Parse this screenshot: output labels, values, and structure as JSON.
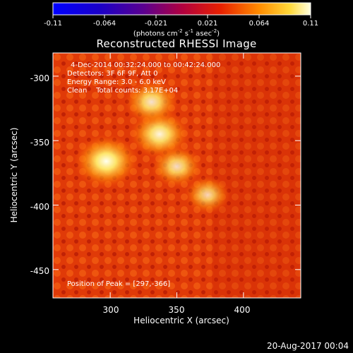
{
  "colorbar": {
    "tick_labels": [
      "-0.11",
      "-0.064",
      "-0.021",
      "0.021",
      "0.064",
      "0.11"
    ],
    "units": "(photons cm^-2 s^-1 asec^-2)",
    "units_parts": {
      "pre": "(photons cm",
      "e1": "-2",
      "mid1": " s",
      "e2": "-1",
      "mid2": " asec",
      "e3": "-2",
      "post": ")"
    },
    "range": [
      -0.11,
      0.11
    ]
  },
  "chart_data": {
    "type": "heatmap",
    "title": "Reconstructed RHESSI Image",
    "xlabel": "Heliocentric X (arcsec)",
    "ylabel": "Heliocentric Y (arcsec)",
    "xlim": [
      257,
      443
    ],
    "ylim": [
      -472,
      -282
    ],
    "x_ticks": [
      "300",
      "350",
      "400"
    ],
    "y_ticks": [
      "-300",
      "-350",
      "-400",
      "-450"
    ],
    "x_tick_values": [
      300,
      350,
      400
    ],
    "y_tick_values": [
      -300,
      -350,
      -400,
      -450
    ],
    "annotations": [
      "4-Dec-2014 00:32:24.000 to 00:42:24.000",
      "Detectors: 3F 6F 9F, Att 0",
      "Energy Range: 3.0 - 6.0 keV",
      "Clean    Total counts: 3.17E+04"
    ],
    "peak_label": "Position of Peak = [297,-366]",
    "peak_position": [
      297,
      -366
    ],
    "sources": [
      {
        "x": 297,
        "y": -366,
        "strength": 1.0
      },
      {
        "x": 337,
        "y": -345,
        "strength": 0.85
      },
      {
        "x": 331,
        "y": -320,
        "strength": 0.7
      },
      {
        "x": 350,
        "y": -370,
        "strength": 0.6
      },
      {
        "x": 373,
        "y": -392,
        "strength": 0.45
      }
    ]
  },
  "footer": {
    "date": "20-Aug-2017 00:04"
  },
  "colors": {
    "background": "#000000",
    "foreground": "#ffffff"
  }
}
